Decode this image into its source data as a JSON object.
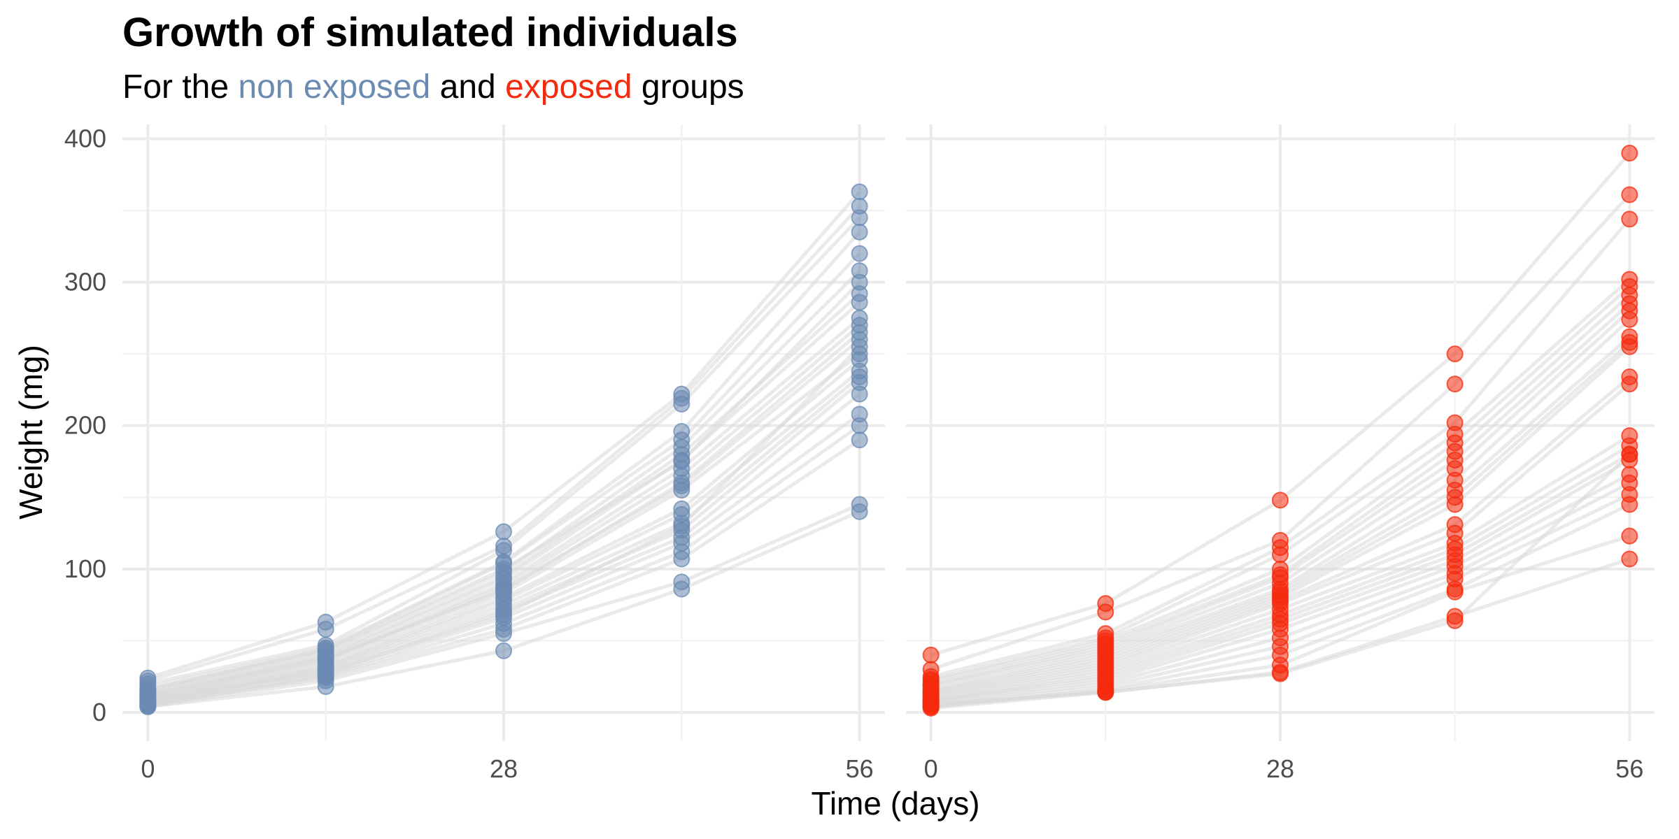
{
  "chart_data": {
    "type": "scatter",
    "title": "Growth of simulated individuals",
    "subtitle": {
      "prefix": "For the ",
      "group1": "non exposed",
      "middle": " and ",
      "group2": "exposed",
      "suffix": " groups"
    },
    "xlabel": "Time (days)",
    "ylabel": "Weight (mg)",
    "xlim": [
      -2,
      58
    ],
    "ylim": [
      -20,
      410
    ],
    "xticks": [
      0,
      28,
      56
    ],
    "yticks": [
      0,
      100,
      200,
      300,
      400
    ],
    "x": [
      0,
      14,
      28,
      42,
      56
    ],
    "grid": true,
    "legend": "none",
    "colors": {
      "non_exposed": "#6b8bb3",
      "exposed": "#f52a0c",
      "trajectory": "#d9d9d9"
    },
    "panels": [
      {
        "group": "non exposed",
        "color": "#6b8bb3",
        "individuals": [
          [
            24,
            63,
            126,
            222,
            363
          ],
          [
            22,
            58,
            116,
            219,
            353
          ],
          [
            20,
            47,
            113,
            215,
            345
          ],
          [
            18,
            45,
            105,
            196,
            335
          ],
          [
            16,
            44,
            104,
            190,
            320
          ],
          [
            15,
            42,
            98,
            185,
            308
          ],
          [
            14,
            40,
            95,
            180,
            292
          ],
          [
            13,
            39,
            93,
            176,
            286
          ],
          [
            12,
            37,
            90,
            170,
            275
          ],
          [
            11,
            36,
            88,
            165,
            270
          ],
          [
            10,
            35,
            86,
            158,
            260
          ],
          [
            10,
            33,
            83,
            155,
            250
          ],
          [
            9,
            32,
            80,
            142,
            246
          ],
          [
            8,
            31,
            78,
            138,
            238
          ],
          [
            7,
            30,
            75,
            132,
            234
          ],
          [
            7,
            29,
            72,
            127,
            230
          ],
          [
            6,
            27,
            70,
            122,
            222
          ],
          [
            6,
            26,
            66,
            118,
            208
          ],
          [
            5,
            25,
            62,
            112,
            200
          ],
          [
            5,
            24,
            58,
            107,
            190
          ],
          [
            4,
            22,
            55,
            91,
            145
          ],
          [
            4,
            18,
            43,
            86,
            140
          ],
          [
            9,
            28,
            68,
            130,
            255
          ],
          [
            12,
            38,
            85,
            160,
            265
          ],
          [
            16,
            43,
            100,
            175,
            300
          ]
        ]
      },
      {
        "group": "exposed",
        "color": "#f52a0c",
        "individuals": [
          [
            40,
            76,
            148,
            250,
            390
          ],
          [
            30,
            70,
            120,
            229,
            361
          ],
          [
            25,
            55,
            115,
            202,
            344
          ],
          [
            23,
            52,
            110,
            194,
            302
          ],
          [
            22,
            50,
            100,
            188,
            297
          ],
          [
            20,
            48,
            96,
            182,
            291
          ],
          [
            19,
            46,
            94,
            176,
            285
          ],
          [
            18,
            44,
            90,
            170,
            280
          ],
          [
            16,
            42,
            86,
            162,
            274
          ],
          [
            15,
            40,
            84,
            155,
            262
          ],
          [
            14,
            38,
            82,
            150,
            258
          ],
          [
            13,
            36,
            80,
            145,
            255
          ],
          [
            12,
            34,
            78,
            131,
            234
          ],
          [
            11,
            32,
            76,
            125,
            229
          ],
          [
            10,
            30,
            72,
            118,
            193
          ],
          [
            9,
            28,
            68,
            114,
            186
          ],
          [
            8,
            26,
            65,
            110,
            180
          ],
          [
            8,
            24,
            62,
            106,
            176
          ],
          [
            7,
            22,
            58,
            102,
            166
          ],
          [
            6,
            20,
            52,
            97,
            160
          ],
          [
            5,
            18,
            46,
            93,
            152
          ],
          [
            4,
            16,
            40,
            86,
            145
          ],
          [
            4,
            15,
            33,
            84,
            123
          ],
          [
            3,
            14,
            28,
            67,
            107
          ],
          [
            6,
            14,
            27,
            64,
            180
          ]
        ]
      }
    ]
  }
}
